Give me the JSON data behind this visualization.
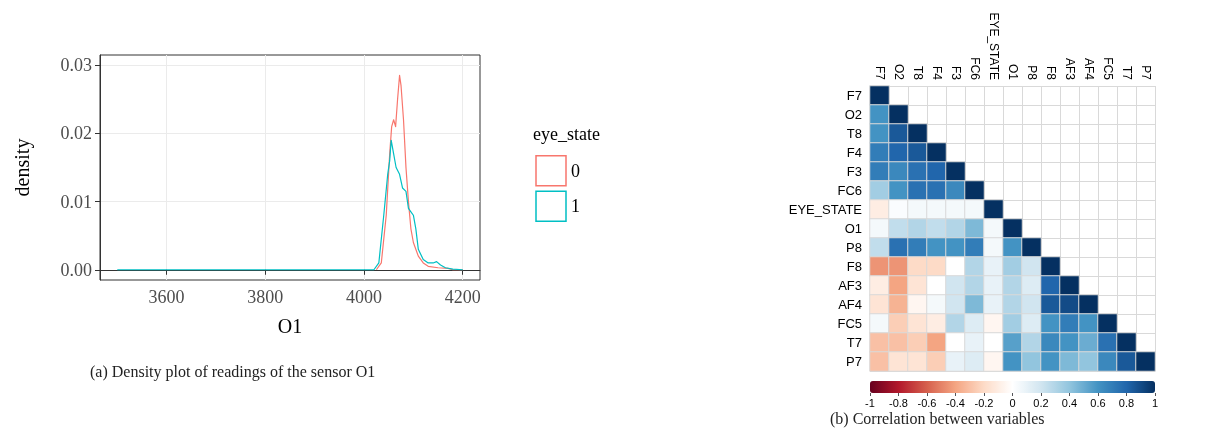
{
  "chart_data": [
    {
      "type": "line",
      "xlabel": "O1",
      "ylabel": "density",
      "legend_title": "eye_state",
      "legend": "right",
      "grid": true,
      "xlim": [
        3465,
        4235
      ],
      "xticks": [
        3600,
        3800,
        4000,
        4200
      ],
      "ylim": [
        -0.0015,
        0.0315
      ],
      "yticks": [
        {
          "value": 0,
          "label": "0.00"
        },
        0.01,
        0.02,
        0.03
      ],
      "series": [
        {
          "name": "0",
          "color": "#f8766d",
          "x": [
            4025,
            4035,
            4045,
            4052,
            4056,
            4060,
            4064,
            4068,
            4072,
            4075,
            4080,
            4085,
            4090,
            4095,
            4100,
            4110,
            4120,
            4130,
            4150,
            4170,
            4180,
            4200
          ],
          "values": [
            0,
            0.001,
            0.008,
            0.017,
            0.021,
            0.022,
            0.021,
            0.025,
            0.0285,
            0.027,
            0.022,
            0.015,
            0.01,
            0.006,
            0.004,
            0.002,
            0.001,
            0.0005,
            0.0003,
            0.0002,
            0,
            0
          ]
        },
        {
          "name": "1",
          "color": "#00bfc4",
          "x": [
            3500,
            4020,
            4030,
            4040,
            4048,
            4052,
            4055,
            4060,
            4065,
            4072,
            4078,
            4085,
            4090,
            4095,
            4100,
            4105,
            4110,
            4120,
            4130,
            4140,
            4147,
            4155,
            4165,
            4180,
            4200
          ],
          "values": [
            0,
            0,
            0.001,
            0.008,
            0.014,
            0.016,
            0.019,
            0.017,
            0.015,
            0.014,
            0.012,
            0.0115,
            0.009,
            0.0085,
            0.008,
            0.006,
            0.003,
            0.0015,
            0.001,
            0.001,
            0.0012,
            0.0007,
            0.0003,
            0.0001,
            0
          ]
        }
      ],
      "annotations": [
        "(a) Density plot of readings of the sensor O1"
      ]
    },
    {
      "type": "heatmap",
      "grid": true,
      "clim": [
        -1,
        1
      ],
      "cticks": [
        -1,
        -0.8,
        -0.6,
        -0.4,
        -0.2,
        0,
        0.2,
        0.4,
        0.6,
        0.8,
        1
      ],
      "categories": [
        "F7",
        "O2",
        "T8",
        "F4",
        "F3",
        "FC6",
        "EYE_STATE",
        "O1",
        "P8",
        "F8",
        "AF3",
        "AF4",
        "FC5",
        "T7",
        "P7"
      ],
      "y_categories": [
        "F7",
        "O2",
        "T8",
        "F4",
        "F3",
        "FC6",
        "EYE_STATE",
        "O1",
        "P8",
        "F8",
        "AF3",
        "AF4",
        "FC5",
        "T7",
        "P7"
      ],
      "cells": [
        [
          1,
          null,
          null,
          null,
          null,
          null,
          null,
          null,
          null,
          null,
          null,
          null,
          null,
          null,
          null
        ],
        [
          0.6,
          1,
          null,
          null,
          null,
          null,
          null,
          null,
          null,
          null,
          null,
          null,
          null,
          null,
          null
        ],
        [
          0.6,
          0.85,
          1,
          null,
          null,
          null,
          null,
          null,
          null,
          null,
          null,
          null,
          null,
          null,
          null
        ],
        [
          0.7,
          0.8,
          0.85,
          1,
          null,
          null,
          null,
          null,
          null,
          null,
          null,
          null,
          null,
          null,
          null
        ],
        [
          0.7,
          0.65,
          0.75,
          0.8,
          1,
          null,
          null,
          null,
          null,
          null,
          null,
          null,
          null,
          null,
          null
        ],
        [
          0.35,
          0.6,
          0.75,
          0.75,
          0.65,
          1,
          null,
          null,
          null,
          null,
          null,
          null,
          null,
          null,
          null
        ],
        [
          -0.1,
          0.02,
          0.05,
          0.05,
          0.05,
          0.05,
          1,
          null,
          null,
          null,
          null,
          null,
          null,
          null,
          null
        ],
        [
          0.05,
          0.25,
          0.3,
          0.25,
          0.3,
          0.45,
          0.05,
          1,
          null,
          null,
          null,
          null,
          null,
          null,
          null
        ],
        [
          0.25,
          0.75,
          0.7,
          0.6,
          0.6,
          0.7,
          0.05,
          0.6,
          1,
          null,
          null,
          null,
          null,
          null,
          null
        ],
        [
          -0.45,
          -0.45,
          -0.2,
          -0.2,
          0,
          0.3,
          0.1,
          0.35,
          0.2,
          1,
          null,
          null,
          null,
          null,
          null
        ],
        [
          -0.1,
          -0.4,
          -0.15,
          0,
          0.2,
          0.3,
          0.1,
          0.3,
          0.15,
          0.8,
          1,
          null,
          null,
          null,
          null
        ],
        [
          -0.15,
          -0.35,
          -0.05,
          0.05,
          0.2,
          0.45,
          0.1,
          0.3,
          0.2,
          0.85,
          0.9,
          1,
          null,
          null,
          null
        ],
        [
          0.05,
          -0.25,
          -0.15,
          -0.1,
          0.3,
          0.15,
          -0.05,
          0.35,
          0.15,
          0.6,
          0.7,
          0.6,
          1,
          null,
          null
        ],
        [
          -0.3,
          -0.3,
          -0.25,
          -0.4,
          0,
          0.1,
          0,
          0.55,
          0.3,
          0.65,
          0.6,
          0.5,
          0.75,
          1,
          null
        ],
        [
          -0.3,
          -0.15,
          -0.15,
          -0.25,
          0.1,
          0.15,
          -0.05,
          0.6,
          0.4,
          0.6,
          0.45,
          0.4,
          0.65,
          0.85,
          1
        ]
      ],
      "annotations": [
        "(b) Correlation between variables"
      ]
    }
  ]
}
